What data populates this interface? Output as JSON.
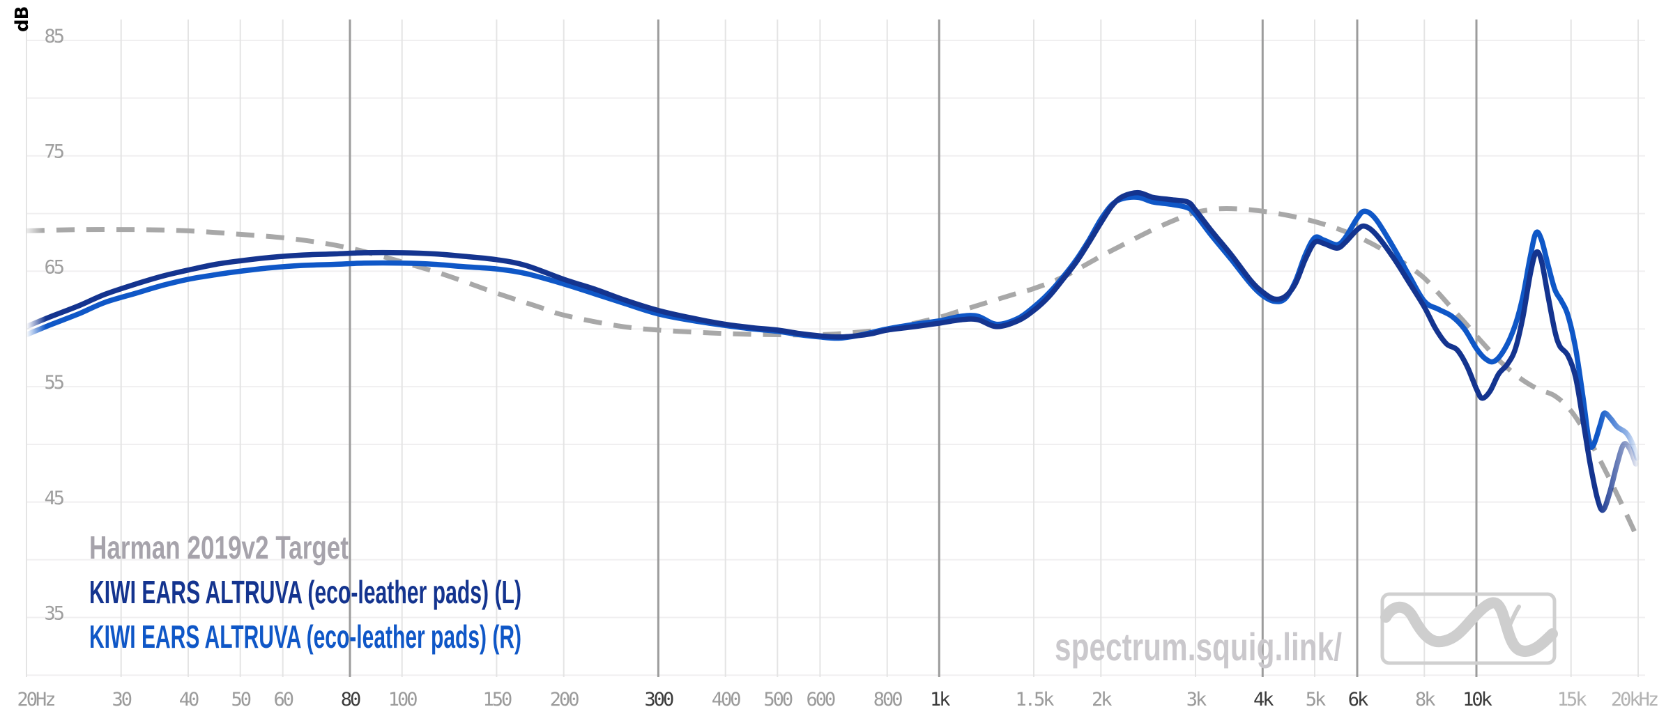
{
  "page": {
    "background": "#ffffff"
  },
  "y_axis": {
    "unit_label": "dB",
    "unit_color": "#4a4a4a",
    "tick_labels": [
      "85",
      "75",
      "65",
      "55",
      "45",
      "35"
    ],
    "tick_values": [
      85,
      75,
      65,
      55,
      45,
      35
    ],
    "label_color": "#9e9e9e"
  },
  "x_axis": {
    "minor_color": "#9b9b9b",
    "major_color": "#3a3a3a",
    "faint_color": "#b2b2b2",
    "ticks": [
      {
        "f": 20,
        "label": "20Hz",
        "major": false
      },
      {
        "f": 30,
        "label": "30",
        "major": false
      },
      {
        "f": 40,
        "label": "40",
        "major": false
      },
      {
        "f": 50,
        "label": "50",
        "major": false
      },
      {
        "f": 60,
        "label": "60",
        "major": false
      },
      {
        "f": 80,
        "label": "80",
        "major": true
      },
      {
        "f": 100,
        "label": "100",
        "major": false
      },
      {
        "f": 150,
        "label": "150",
        "major": false
      },
      {
        "f": 200,
        "label": "200",
        "major": false
      },
      {
        "f": 300,
        "label": "300",
        "major": true
      },
      {
        "f": 400,
        "label": "400",
        "major": false
      },
      {
        "f": 500,
        "label": "500",
        "major": false
      },
      {
        "f": 600,
        "label": "600",
        "major": false
      },
      {
        "f": 800,
        "label": "800",
        "major": false
      },
      {
        "f": 1000,
        "label": "1k",
        "major": true
      },
      {
        "f": 1500,
        "label": "1.5k",
        "major": false
      },
      {
        "f": 2000,
        "label": "2k",
        "major": false
      },
      {
        "f": 3000,
        "label": "3k",
        "major": false
      },
      {
        "f": 4000,
        "label": "4k",
        "major": true
      },
      {
        "f": 5000,
        "label": "5k",
        "major": false
      },
      {
        "f": 6000,
        "label": "6k",
        "major": true
      },
      {
        "f": 8000,
        "label": "8k",
        "major": false
      },
      {
        "f": 10000,
        "label": "10k",
        "major": true
      },
      {
        "f": 15000,
        "label": "15k",
        "major": false,
        "faint": true
      },
      {
        "f": 20000,
        "label": "20kHz",
        "major": false,
        "faint": true
      }
    ]
  },
  "grid": {
    "h_color": "#f0eff0",
    "v_minor_color": "#e4e4e4",
    "v_major_color": "#9c9c9c",
    "h_db_lines": [
      85,
      80,
      75,
      70,
      65,
      60,
      55,
      50,
      45,
      40,
      35,
      30
    ]
  },
  "legend": {
    "items": [
      {
        "label": "Harman 2019v2 Target",
        "color": "#a6a3ab"
      },
      {
        "label": "KIWI EARS ALTRUVA (eco-leather pads) (L)",
        "color": "#14348f"
      },
      {
        "label": "KIWI EARS ALTRUVA (eco-leather pads) (R)",
        "color": "#0f57c7"
      }
    ]
  },
  "watermark": {
    "text": "spectrum.squig.link/",
    "color": "#cac8cc"
  },
  "logo": {
    "stroke_color": "#d0d0d0",
    "wave_color": "#cecece"
  },
  "chart_data": {
    "type": "line",
    "x_scale": "log",
    "x_range": [
      20,
      20000
    ],
    "xlabel": "",
    "ylabel": "dB",
    "y_grid_range": [
      30,
      85
    ],
    "y_grid_step": 5,
    "grid": true,
    "legend_position": "bottom-left",
    "series": [
      {
        "name": "Harman 2019v2 Target",
        "color": "#a8a8a8",
        "style": "dashed",
        "points": [
          [
            20,
            68.5
          ],
          [
            25,
            68.6
          ],
          [
            32,
            68.6
          ],
          [
            40,
            68.5
          ],
          [
            50,
            68.2
          ],
          [
            60,
            67.9
          ],
          [
            70,
            67.5
          ],
          [
            80,
            67.0
          ],
          [
            90,
            66.4
          ],
          [
            100,
            65.8
          ],
          [
            120,
            64.7
          ],
          [
            150,
            63.1
          ],
          [
            180,
            61.9
          ],
          [
            200,
            61.2
          ],
          [
            250,
            60.3
          ],
          [
            300,
            59.9
          ],
          [
            400,
            59.6
          ],
          [
            500,
            59.5
          ],
          [
            600,
            59.5
          ],
          [
            700,
            59.7
          ],
          [
            800,
            60.0
          ],
          [
            900,
            60.5
          ],
          [
            1000,
            61.0
          ],
          [
            1100,
            61.6
          ],
          [
            1250,
            62.4
          ],
          [
            1400,
            63.1
          ],
          [
            1500,
            63.5
          ],
          [
            1700,
            64.5
          ],
          [
            2000,
            66.3
          ],
          [
            2200,
            67.3
          ],
          [
            2500,
            68.6
          ],
          [
            2800,
            69.6
          ],
          [
            3000,
            70.1
          ],
          [
            3300,
            70.4
          ],
          [
            3600,
            70.4
          ],
          [
            4000,
            70.2
          ],
          [
            4500,
            69.8
          ],
          [
            5000,
            69.3
          ],
          [
            5500,
            68.7
          ],
          [
            6000,
            68.0
          ],
          [
            6500,
            67.2
          ],
          [
            7000,
            66.3
          ],
          [
            7500,
            65.4
          ],
          [
            8000,
            64.4
          ],
          [
            8500,
            63.1
          ],
          [
            9000,
            61.8
          ],
          [
            9500,
            60.6
          ],
          [
            10000,
            59.4
          ],
          [
            10500,
            58.3
          ],
          [
            11000,
            57.3
          ],
          [
            12000,
            55.8
          ],
          [
            13000,
            54.8
          ],
          [
            14000,
            54.2
          ],
          [
            15000,
            52.9
          ],
          [
            16000,
            50.9
          ],
          [
            17000,
            48.6
          ],
          [
            18000,
            46.3
          ],
          [
            19000,
            44.0
          ],
          [
            19800,
            42.2
          ]
        ]
      },
      {
        "name": "KIWI EARS ALTRUVA (eco-leather pads) (R)",
        "color": "#0f57c7",
        "style": "solid",
        "points": [
          [
            20,
            59.5
          ],
          [
            22,
            60.3
          ],
          [
            25,
            61.3
          ],
          [
            28,
            62.3
          ],
          [
            32,
            63.1
          ],
          [
            36,
            63.8
          ],
          [
            40,
            64.3
          ],
          [
            45,
            64.7
          ],
          [
            50,
            65.0
          ],
          [
            57,
            65.3
          ],
          [
            65,
            65.5
          ],
          [
            75,
            65.6
          ],
          [
            85,
            65.7
          ],
          [
            100,
            65.7
          ],
          [
            115,
            65.6
          ],
          [
            130,
            65.4
          ],
          [
            150,
            65.2
          ],
          [
            170,
            64.8
          ],
          [
            200,
            63.9
          ],
          [
            230,
            63.0
          ],
          [
            260,
            62.2
          ],
          [
            300,
            61.3
          ],
          [
            350,
            60.7
          ],
          [
            400,
            60.3
          ],
          [
            450,
            60.0
          ],
          [
            500,
            59.8
          ],
          [
            550,
            59.5
          ],
          [
            600,
            59.3
          ],
          [
            650,
            59.2
          ],
          [
            700,
            59.4
          ],
          [
            750,
            59.7
          ],
          [
            800,
            60.0
          ],
          [
            900,
            60.4
          ],
          [
            1000,
            60.7
          ],
          [
            1100,
            61.1
          ],
          [
            1180,
            61.1
          ],
          [
            1280,
            60.4
          ],
          [
            1400,
            60.9
          ],
          [
            1500,
            61.9
          ],
          [
            1600,
            63.1
          ],
          [
            1700,
            64.5
          ],
          [
            1800,
            66.0
          ],
          [
            1900,
            67.7
          ],
          [
            2000,
            69.5
          ],
          [
            2100,
            70.8
          ],
          [
            2200,
            71.3
          ],
          [
            2350,
            71.4
          ],
          [
            2500,
            71.0
          ],
          [
            2700,
            70.8
          ],
          [
            2900,
            70.5
          ],
          [
            3000,
            69.9
          ],
          [
            3200,
            68.2
          ],
          [
            3500,
            66.0
          ],
          [
            3800,
            63.9
          ],
          [
            4000,
            62.9
          ],
          [
            4200,
            62.4
          ],
          [
            4400,
            62.6
          ],
          [
            4600,
            64.1
          ],
          [
            4800,
            66.4
          ],
          [
            5000,
            67.9
          ],
          [
            5200,
            67.7
          ],
          [
            5500,
            67.3
          ],
          [
            5700,
            67.9
          ],
          [
            6000,
            69.6
          ],
          [
            6200,
            70.2
          ],
          [
            6500,
            69.5
          ],
          [
            7000,
            67.1
          ],
          [
            7500,
            64.6
          ],
          [
            8000,
            62.4
          ],
          [
            8500,
            61.7
          ],
          [
            9000,
            61.1
          ],
          [
            9500,
            60.0
          ],
          [
            10000,
            58.3
          ],
          [
            10400,
            57.4
          ],
          [
            10800,
            57.2
          ],
          [
            11300,
            58.3
          ],
          [
            11800,
            60.3
          ],
          [
            12200,
            62.8
          ],
          [
            12600,
            66.3
          ],
          [
            12900,
            68.3
          ],
          [
            13200,
            67.8
          ],
          [
            13600,
            65.5
          ],
          [
            14000,
            63.4
          ],
          [
            14400,
            62.4
          ],
          [
            14800,
            61.2
          ],
          [
            15300,
            58.3
          ],
          [
            15800,
            54.0
          ],
          [
            16200,
            50.3
          ],
          [
            16500,
            49.9
          ],
          [
            17000,
            51.7
          ],
          [
            17300,
            52.7
          ],
          [
            17800,
            52.2
          ],
          [
            18300,
            51.5
          ],
          [
            19000,
            51.0
          ],
          [
            19500,
            50.1
          ],
          [
            19900,
            48.8
          ]
        ]
      },
      {
        "name": "KIWI EARS ALTRUVA (eco-leather pads) (L)",
        "color": "#14348f",
        "style": "solid",
        "points": [
          [
            20,
            60.2
          ],
          [
            22,
            61.0
          ],
          [
            25,
            62.0
          ],
          [
            28,
            63.0
          ],
          [
            32,
            63.9
          ],
          [
            36,
            64.6
          ],
          [
            40,
            65.1
          ],
          [
            45,
            65.6
          ],
          [
            50,
            65.9
          ],
          [
            57,
            66.2
          ],
          [
            65,
            66.4
          ],
          [
            75,
            66.5
          ],
          [
            85,
            66.6
          ],
          [
            100,
            66.6
          ],
          [
            115,
            66.5
          ],
          [
            130,
            66.3
          ],
          [
            150,
            66.0
          ],
          [
            170,
            65.5
          ],
          [
            200,
            64.3
          ],
          [
            230,
            63.4
          ],
          [
            260,
            62.5
          ],
          [
            300,
            61.6
          ],
          [
            350,
            60.9
          ],
          [
            400,
            60.4
          ],
          [
            450,
            60.1
          ],
          [
            500,
            59.9
          ],
          [
            550,
            59.6
          ],
          [
            600,
            59.4
          ],
          [
            650,
            59.3
          ],
          [
            700,
            59.4
          ],
          [
            750,
            59.6
          ],
          [
            800,
            59.9
          ],
          [
            900,
            60.2
          ],
          [
            1000,
            60.5
          ],
          [
            1100,
            60.8
          ],
          [
            1180,
            60.8
          ],
          [
            1280,
            60.2
          ],
          [
            1400,
            60.7
          ],
          [
            1500,
            61.6
          ],
          [
            1600,
            62.8
          ],
          [
            1700,
            64.3
          ],
          [
            1800,
            65.8
          ],
          [
            1900,
            67.5
          ],
          [
            2000,
            69.2
          ],
          [
            2100,
            70.7
          ],
          [
            2200,
            71.5
          ],
          [
            2350,
            71.8
          ],
          [
            2500,
            71.4
          ],
          [
            2700,
            71.2
          ],
          [
            2900,
            71.0
          ],
          [
            3000,
            70.3
          ],
          [
            3200,
            68.6
          ],
          [
            3500,
            66.4
          ],
          [
            3800,
            64.2
          ],
          [
            4000,
            63.2
          ],
          [
            4200,
            62.6
          ],
          [
            4400,
            62.8
          ],
          [
            4600,
            63.9
          ],
          [
            4800,
            66.0
          ],
          [
            5000,
            67.5
          ],
          [
            5200,
            67.4
          ],
          [
            5500,
            67.0
          ],
          [
            5700,
            67.5
          ],
          [
            6000,
            68.6
          ],
          [
            6200,
            68.9
          ],
          [
            6500,
            68.2
          ],
          [
            7000,
            66.2
          ],
          [
            7500,
            64.0
          ],
          [
            8000,
            61.9
          ],
          [
            8400,
            60.0
          ],
          [
            8800,
            58.7
          ],
          [
            9200,
            58.2
          ],
          [
            9600,
            56.8
          ],
          [
            10000,
            54.8
          ],
          [
            10250,
            54.0
          ],
          [
            10600,
            54.6
          ],
          [
            11000,
            56.1
          ],
          [
            11400,
            56.9
          ],
          [
            11800,
            58.2
          ],
          [
            12200,
            61.0
          ],
          [
            12600,
            64.8
          ],
          [
            12900,
            66.6
          ],
          [
            13200,
            66.0
          ],
          [
            13600,
            62.8
          ],
          [
            14000,
            59.8
          ],
          [
            14300,
            58.5
          ],
          [
            14800,
            57.7
          ],
          [
            15300,
            55.8
          ],
          [
            15800,
            52.0
          ],
          [
            16300,
            48.2
          ],
          [
            16800,
            45.3
          ],
          [
            17200,
            44.3
          ],
          [
            17700,
            45.8
          ],
          [
            18300,
            48.4
          ],
          [
            18800,
            50.0
          ],
          [
            19300,
            49.6
          ],
          [
            19800,
            48.3
          ]
        ]
      }
    ]
  }
}
